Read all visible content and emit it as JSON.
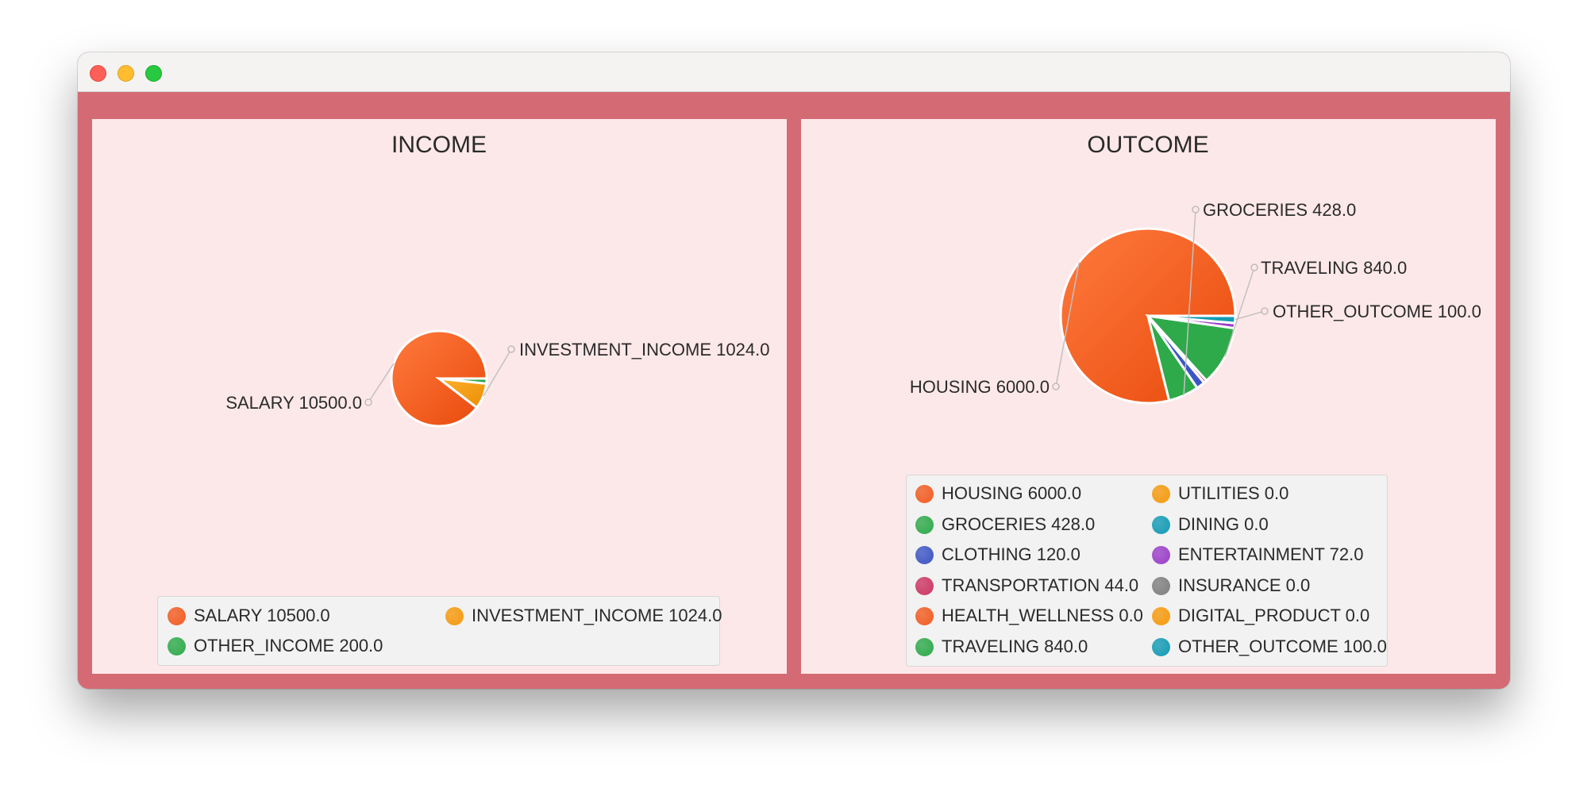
{
  "colors": {
    "frame": "#d46b74",
    "panel": "#fde8e9",
    "palette": [
      "#f25c22",
      "#2eaa4a",
      "#3d55c4",
      "#cc3663",
      "#f59a0e",
      "#139bb5",
      "#9b3fc9",
      "#7f7f7f"
    ]
  },
  "chart_data": [
    {
      "type": "pie",
      "title": "INCOME",
      "labels": [
        "SALARY",
        "INVESTMENT_INCOME",
        "OTHER_INCOME"
      ],
      "values": [
        10500.0,
        1024.0,
        200.0
      ],
      "value_labels": [
        "10500.0",
        "1024.0",
        "200.0"
      ],
      "colors": [
        "#f25c22",
        "#f59a0e",
        "#2eaa4a"
      ],
      "slice_labels_visible": [
        "SALARY",
        "INVESTMENT_INCOME"
      ],
      "legend_position": "bottom",
      "legend_columns": 2,
      "legend": [
        {
          "text": "SALARY 10500.0",
          "color": "#f25c22"
        },
        {
          "text": "INVESTMENT_INCOME 1024.0",
          "color": "#f59a0e"
        },
        {
          "text": "OTHER_INCOME 200.0",
          "color": "#2eaa4a"
        }
      ]
    },
    {
      "type": "pie",
      "title": "OUTCOME",
      "labels": [
        "HOUSING",
        "GROCERIES",
        "CLOTHING",
        "TRANSPORTATION",
        "HEALTH_WELLNESS",
        "TRAVELING",
        "UTILITIES",
        "DINING",
        "ENTERTAINMENT",
        "INSURANCE",
        "DIGITAL_PRODUCT",
        "OTHER_OUTCOME"
      ],
      "values": [
        6000.0,
        428.0,
        120.0,
        44.0,
        0.0,
        840.0,
        0.0,
        0.0,
        72.0,
        0.0,
        0.0,
        100.0
      ],
      "value_labels": [
        "6000.0",
        "428.0",
        "120.0",
        "44.0",
        "0.0",
        "840.0",
        "0.0",
        "0.0",
        "72.0",
        "0.0",
        "0.0",
        "100.0"
      ],
      "colors": [
        "#f25c22",
        "#2eaa4a",
        "#3d55c4",
        "#cc3663",
        "#f25c22",
        "#2eaa4a",
        "#f59a0e",
        "#139bb5",
        "#9b3fc9",
        "#7f7f7f",
        "#f59a0e",
        "#139bb5"
      ],
      "slice_labels_visible": [
        "HOUSING",
        "GROCERIES",
        "TRAVELING",
        "OTHER_OUTCOME"
      ],
      "legend_position": "bottom",
      "legend_columns": 2,
      "legend": [
        {
          "text": "HOUSING 6000.0",
          "color": "#f25c22"
        },
        {
          "text": "UTILITIES 0.0",
          "color": "#f59a0e"
        },
        {
          "text": "GROCERIES 428.0",
          "color": "#2eaa4a"
        },
        {
          "text": "DINING 0.0",
          "color": "#139bb5"
        },
        {
          "text": "CLOTHING 120.0",
          "color": "#3d55c4"
        },
        {
          "text": "ENTERTAINMENT 72.0",
          "color": "#9b3fc9"
        },
        {
          "text": "TRANSPORTATION 44.0",
          "color": "#cc3663"
        },
        {
          "text": "INSURANCE 0.0",
          "color": "#7f7f7f"
        },
        {
          "text": "HEALTH_WELLNESS 0.0",
          "color": "#f25c22"
        },
        {
          "text": "DIGITAL_PRODUCT 0.0",
          "color": "#f59a0e"
        },
        {
          "text": "TRAVELING 840.0",
          "color": "#2eaa4a"
        },
        {
          "text": "OTHER_OUTCOME 100.0",
          "color": "#139bb5"
        }
      ]
    }
  ]
}
